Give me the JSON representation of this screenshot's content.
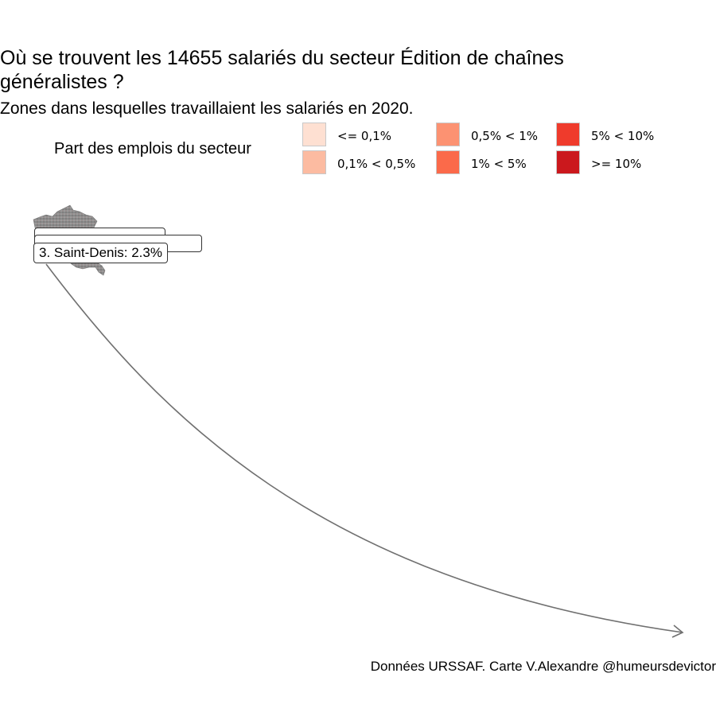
{
  "title": "Où se trouvent les 14655 salariés du secteur Édition de chaînes généralistes ?",
  "subtitle": "Zones dans lesquelles travaillaient les salariés en 2020.",
  "caption": "Données URSSAF. Carte V.Alexandre @humeursdevictor",
  "legend": {
    "title": "Part des emplois du secteur",
    "items": [
      {
        "label": "<= 0,1%",
        "color": "#fee0d2"
      },
      {
        "label": "0,1% < 0,5%",
        "color": "#fcbba1"
      },
      {
        "label": "0,5% < 1%",
        "color": "#fc9272"
      },
      {
        "label": "1% < 5%",
        "color": "#fb6a4a"
      },
      {
        "label": "5% < 10%",
        "color": "#ef3b2c"
      },
      {
        "label": ">= 10%",
        "color": "#cb181d"
      }
    ]
  },
  "chart_data": {
    "type": "map",
    "title": "Où se trouvent les 14655 salariés du secteur Édition de chaînes généralistes ?",
    "subtitle": "Zones dans lesquelles travaillaient les salariés en 2020.",
    "total_employees": 14655,
    "year": 2020,
    "map_region": "France",
    "labels": [
      {
        "rank": 3,
        "text": "3. Saint-Denis: 2.3%",
        "zone": "Saint-Denis",
        "share_percent": 2.3
      }
    ],
    "annotation": "curved arrow",
    "caption": "Données URSSAF. Carte V.Alexandre @humeursdevictor"
  }
}
